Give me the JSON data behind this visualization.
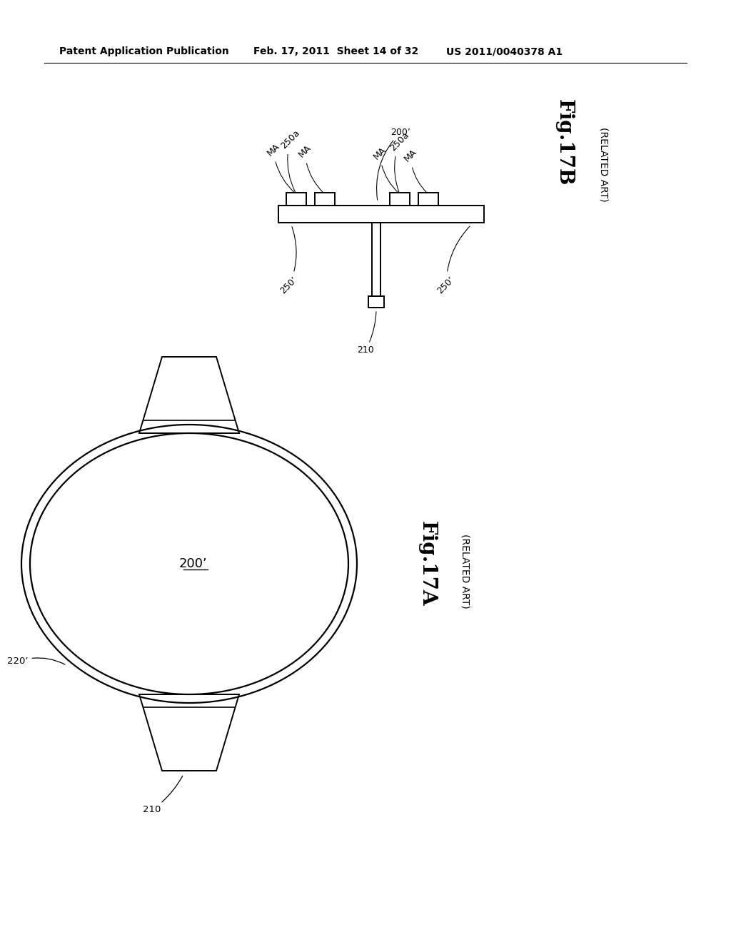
{
  "bg_color": "#ffffff",
  "header_left": "Patent Application Publication",
  "header_mid": "Feb. 17, 2011  Sheet 14 of 32",
  "header_right": "US 2011/0040378 A1",
  "fig17a_label": "Fig.17A",
  "fig17a_sub": "(RELATED ART)",
  "fig17b_label": "Fig.17B",
  "fig17b_sub": "(RELATED ART)",
  "lw": 1.4
}
